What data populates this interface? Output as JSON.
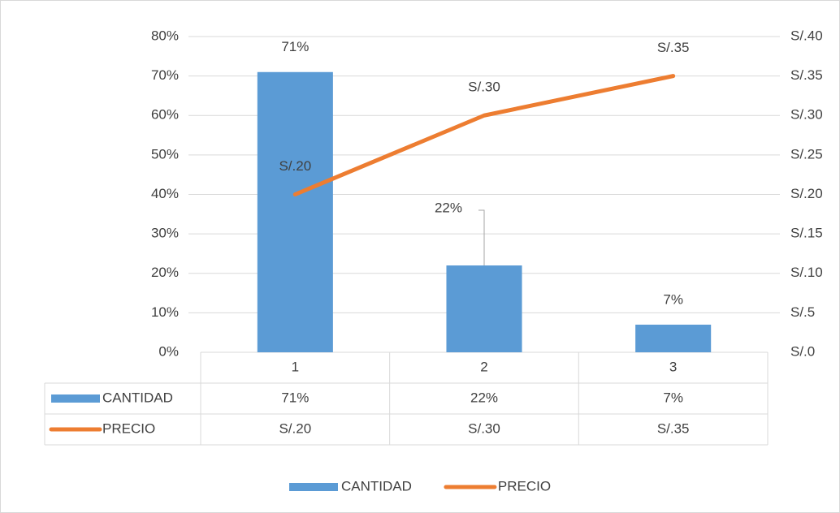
{
  "chart_data": {
    "type": "bar",
    "categories": [
      "1",
      "2",
      "3"
    ],
    "series": [
      {
        "name": "CANTIDAD",
        "type": "bar",
        "color": "#5b9bd5",
        "values": [
          71,
          22,
          7
        ],
        "value_labels": [
          "71%",
          "22%",
          "7%"
        ]
      },
      {
        "name": "PRECIO",
        "type": "line",
        "axis": "y2",
        "color": "#ed7d31",
        "values": [
          20,
          30,
          35
        ],
        "value_labels": [
          "S/.20",
          "S/.30",
          "S/.35"
        ]
      }
    ],
    "ylim": [
      0,
      80
    ],
    "yticks": [
      {
        "value": 0,
        "label": "0%"
      },
      {
        "value": 10,
        "label": "10%"
      },
      {
        "value": 20,
        "label": "20%"
      },
      {
        "value": 30,
        "label": "30%"
      },
      {
        "value": 40,
        "label": "40%"
      },
      {
        "value": 50,
        "label": "50%"
      },
      {
        "value": 60,
        "label": "60%"
      },
      {
        "value": 70,
        "label": "70%"
      },
      {
        "value": 80,
        "label": "80%"
      }
    ],
    "y2lim": [
      0,
      40
    ],
    "y2ticks": [
      {
        "value": 0,
        "label": "S/.0"
      },
      {
        "value": 5,
        "label": "S/.5"
      },
      {
        "value": 10,
        "label": "S/.10"
      },
      {
        "value": 15,
        "label": "S/.15"
      },
      {
        "value": 20,
        "label": "S/.20"
      },
      {
        "value": 25,
        "label": "S/.25"
      },
      {
        "value": 30,
        "label": "S/.30"
      },
      {
        "value": 35,
        "label": "S/.35"
      },
      {
        "value": 40,
        "label": "S/.40"
      }
    ],
    "grid": true,
    "legend": "bottom",
    "data_table": true
  }
}
